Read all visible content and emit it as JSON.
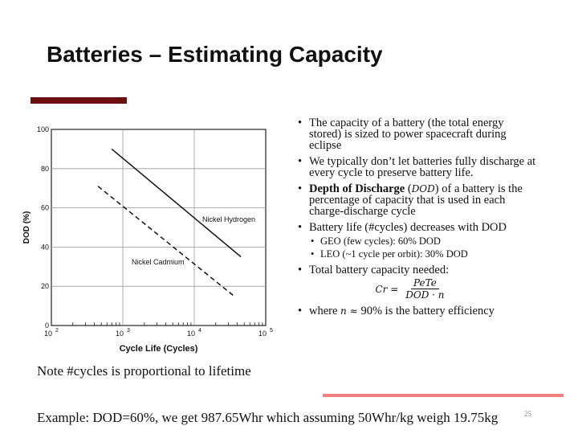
{
  "slide": {
    "title": "Batteries – Estimating Capacity",
    "note": "Note #cycles is proportional to lifetime",
    "example": "Example: DOD=60%, we get 987.65Whr which assuming 50Whr/kg weigh 19.75kg",
    "slide_number": "25",
    "accent_color": "#6b0f0f",
    "rule_color": "#f08080"
  },
  "bullets": [
    {
      "text": "The capacity of a battery (the total energy stored) is sized to power spacecraft during eclipse"
    },
    {
      "text": "We typically don’t let batteries fully discharge at every cycle to preserve battery life."
    },
    {
      "bold": "Depth of Discharge",
      "open": " (",
      "math": "DOD",
      "rest": ") of a battery is the percentage of capacity that is used in each charge-discharge cycle"
    },
    {
      "text": "Battery life (#cycles) decreases with DOD",
      "sub": [
        "GEO (few cycles): 60% DOD",
        "LEO (~1 cycle per orbit): 30% DOD"
      ]
    },
    {
      "text": "Total battery capacity needed:",
      "formula": {
        "lhs": "Cr =",
        "num": "PeTe",
        "den": "DOD · n"
      }
    },
    {
      "pre": " where ",
      "math": "n ≈ ",
      "rest": "90% is the battery efficiency"
    }
  ],
  "chart_data": {
    "type": "line",
    "xlabel": "Cycle Life (Cycles)",
    "ylabel": "DOD (%)",
    "x_scale": "log",
    "xlim": [
      100,
      100000
    ],
    "ylim": [
      0,
      100
    ],
    "x_ticks": [
      {
        "base": "10",
        "exp": "2",
        "value": 100
      },
      {
        "base": "10",
        "exp": "3",
        "value": 1000
      },
      {
        "base": "10",
        "exp": "4",
        "value": 10000
      },
      {
        "base": "10",
        "exp": "5",
        "value": 100000
      }
    ],
    "y_ticks": [
      "0",
      "20",
      "40",
      "60",
      "80",
      "100"
    ],
    "grid": "major",
    "series": [
      {
        "name": "Nickel Hydrogen",
        "style": "solid",
        "points": [
          [
            700,
            90
          ],
          [
            45000,
            35
          ]
        ]
      },
      {
        "name": "Nickel Cadmium",
        "style": "dashed",
        "points": [
          [
            450,
            71
          ],
          [
            36000,
            15
          ]
        ]
      }
    ]
  }
}
